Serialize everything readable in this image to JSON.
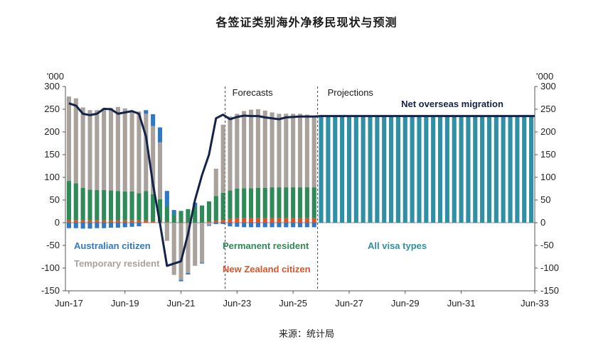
{
  "title": "各签证类别海外净移民现状与预测",
  "source": "来源：统计局",
  "colors": {
    "australian_citizen": "#2f78c4",
    "temporary_resident": "#a9a19b",
    "permanent_resident": "#2e8b57",
    "new_zealand_citizen": "#d9542b",
    "all_visa_types": "#2f8fa5",
    "net_line": "#13234a"
  },
  "chart_data": {
    "type": "bar",
    "y_unit_left": "'000",
    "y_unit_right": "'000",
    "ylim": [
      -150,
      300
    ],
    "yticks": [
      -150,
      -100,
      -50,
      0,
      50,
      100,
      150,
      200,
      250,
      300
    ],
    "x_tick_labels": [
      "Jun-17",
      "Jun-19",
      "Jun-21",
      "Jun-23",
      "Jun-25",
      "Jun-27",
      "Jun-29",
      "Jun-31",
      "Jun-33"
    ],
    "sections": {
      "forecasts_label": "Forecasts",
      "projections_label": "Projections"
    },
    "legend": {
      "australian_citizen": "Australian citizen",
      "temporary_resident": "Temporary resident",
      "permanent_resident": "Permanent resident",
      "new_zealand_citizen": "New Zealand citizen",
      "all_visa_types": "All visa types"
    },
    "line_label": "Net overseas migration",
    "stacked_quarters": {
      "description_periods": "quarterly, Jun-17 to Mar-26",
      "australian_citizen": [
        -12,
        -12,
        -13,
        -13,
        -12,
        -12,
        -11,
        -11,
        -10,
        -9,
        -8,
        8,
        26,
        33,
        34,
        10,
        -3,
        -3,
        8,
        -2,
        -2,
        -3,
        -3,
        -8,
        -9,
        -10,
        -10,
        -10,
        -10,
        -10,
        -10,
        -10,
        -10,
        -10,
        -10,
        -10
      ],
      "new_zealand_citizen": [
        5,
        5,
        5,
        5,
        5,
        5,
        5,
        5,
        5,
        5,
        5,
        5,
        3,
        2,
        1,
        0,
        -1,
        -1,
        0,
        0,
        2,
        4,
        6,
        8,
        10,
        10,
        10,
        10,
        10,
        10,
        10,
        10,
        10,
        10,
        10,
        10
      ],
      "permanent_resident": [
        87,
        82,
        72,
        68,
        67,
        67,
        66,
        65,
        64,
        64,
        60,
        65,
        60,
        50,
        35,
        18,
        26,
        30,
        36,
        38,
        45,
        55,
        60,
        63,
        65,
        66,
        66,
        67,
        67,
        68,
        68,
        68,
        68,
        68,
        68,
        68
      ],
      "temporary_resident": [
        186,
        187,
        177,
        175,
        176,
        180,
        182,
        185,
        183,
        175,
        180,
        170,
        150,
        125,
        -40,
        -115,
        -125,
        -110,
        -95,
        -88,
        -5,
        60,
        150,
        163,
        165,
        170,
        173,
        173,
        170,
        165,
        162,
        162,
        162,
        162,
        160,
        158
      ]
    },
    "net_overseas_migration": [
      263,
      258,
      240,
      237,
      240,
      251,
      250,
      240,
      243,
      246,
      240,
      190,
      85,
      -2,
      -95,
      -90,
      -85,
      -25,
      50,
      105,
      150,
      230,
      238,
      228,
      233,
      236,
      235,
      235,
      232,
      230,
      228,
      232,
      233,
      234,
      234,
      234
    ],
    "projection_quarters": 31,
    "projection_value": 235
  }
}
